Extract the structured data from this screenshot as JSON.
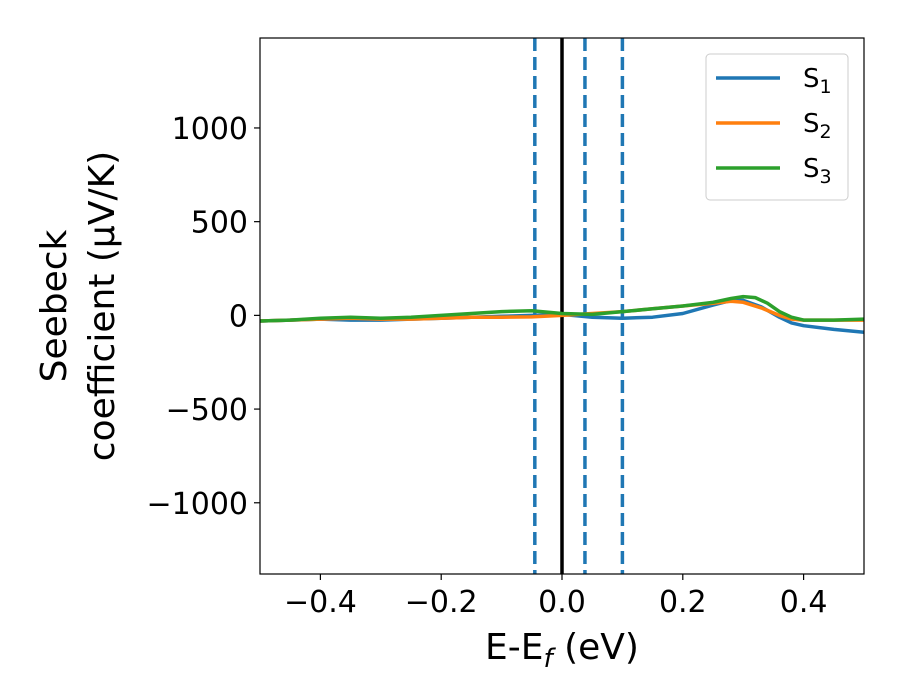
{
  "chart_data": {
    "type": "line",
    "xlabel": "E-E_f (eV)",
    "xlabel_parts": {
      "main": "E-E",
      "sub": "f",
      "rest": " (eV)"
    },
    "ylabel_line1": "Seebeck",
    "ylabel_line2": "coefficient  (μV/K)",
    "xlim": [
      -0.5,
      0.5
    ],
    "ylim": [
      -1380,
      1480
    ],
    "xticks": [
      -0.4,
      -0.2,
      0.0,
      0.2,
      0.4
    ],
    "xtick_labels": [
      "−0.4",
      "−0.2",
      "0.0",
      "0.2",
      "0.4"
    ],
    "yticks": [
      -1000,
      -500,
      0,
      500,
      1000
    ],
    "ytick_labels": [
      "−1000",
      "−500",
      "0",
      "500",
      "1000"
    ],
    "grid": false,
    "legend_position": "top-right",
    "fermi_line": {
      "x": 0.0,
      "color": "#000000",
      "style": "solid"
    },
    "dashed_lines": {
      "x": [
        -0.045,
        0.038,
        0.1
      ],
      "color": "#1f77b4",
      "style": "dashed"
    },
    "series": [
      {
        "name": "S1",
        "label_main": "S",
        "label_sub": "1",
        "color": "#1f77b4",
        "x": [
          -0.5,
          -0.45,
          -0.4,
          -0.35,
          -0.3,
          -0.25,
          -0.2,
          -0.15,
          -0.1,
          -0.05,
          0.0,
          0.05,
          0.1,
          0.15,
          0.2,
          0.25,
          0.28,
          0.3,
          0.33,
          0.36,
          0.38,
          0.4,
          0.45,
          0.5
        ],
        "y": [
          -30,
          -25,
          -20,
          -25,
          -25,
          -20,
          -15,
          -10,
          -5,
          0,
          5,
          -10,
          -15,
          -10,
          10,
          55,
          80,
          80,
          45,
          -10,
          -40,
          -55,
          -75,
          -90
        ]
      },
      {
        "name": "S2",
        "label_main": "S",
        "label_sub": "2",
        "color": "#ff7f0e",
        "x": [
          -0.5,
          -0.45,
          -0.4,
          -0.35,
          -0.3,
          -0.25,
          -0.2,
          -0.15,
          -0.1,
          -0.05,
          0.0,
          0.05,
          0.1,
          0.15,
          0.2,
          0.25,
          0.28,
          0.3,
          0.33,
          0.36,
          0.38,
          0.4,
          0.45,
          0.5
        ],
        "y": [
          -30,
          -25,
          -20,
          -15,
          -20,
          -20,
          -15,
          -10,
          -10,
          -8,
          0,
          10,
          20,
          35,
          50,
          65,
          75,
          70,
          40,
          0,
          -20,
          -25,
          -25,
          -25
        ]
      },
      {
        "name": "S3",
        "label_main": "S",
        "label_sub": "3",
        "color": "#2ca02c",
        "x": [
          -0.5,
          -0.45,
          -0.4,
          -0.35,
          -0.3,
          -0.25,
          -0.2,
          -0.15,
          -0.1,
          -0.05,
          0.0,
          0.05,
          0.1,
          0.15,
          0.2,
          0.25,
          0.28,
          0.3,
          0.32,
          0.34,
          0.36,
          0.38,
          0.4,
          0.45,
          0.5
        ],
        "y": [
          -30,
          -25,
          -15,
          -10,
          -15,
          -10,
          0,
          10,
          20,
          25,
          10,
          5,
          20,
          35,
          50,
          70,
          90,
          100,
          95,
          65,
          20,
          -10,
          -25,
          -25,
          -20
        ]
      }
    ]
  }
}
